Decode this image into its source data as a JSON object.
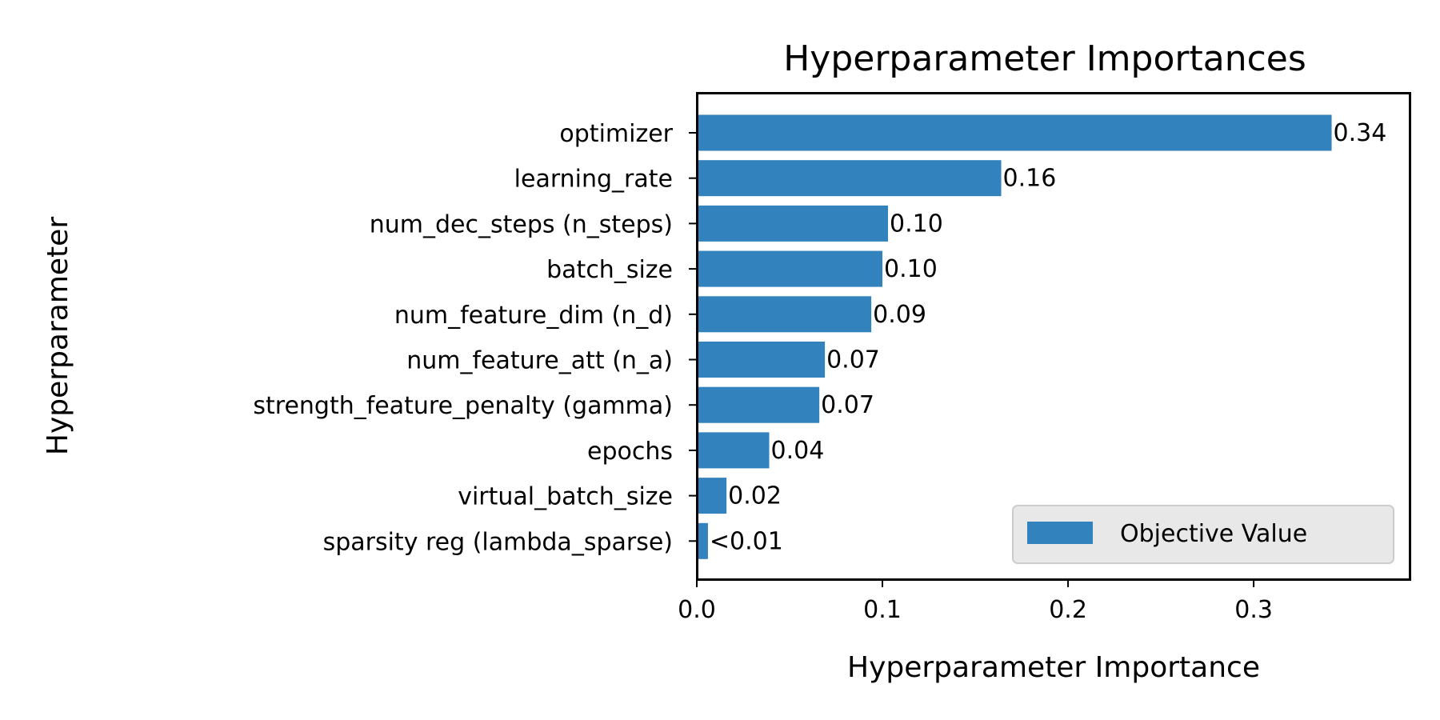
{
  "chart_data": {
    "type": "bar",
    "orientation": "horizontal",
    "title": "Hyperparameter Importances",
    "xlabel": "Hyperparameter Importance",
    "ylabel": "Hyperparameter",
    "categories": [
      "optimizer",
      "learning_rate",
      "num_dec_steps (n_steps)",
      "batch_size",
      "num_feature_dim (n_d)",
      "num_feature_att (n_a)",
      "strength_feature_penalty (gamma)",
      "epochs",
      "virtual_batch_size",
      "sparsity reg (lambda_sparse)"
    ],
    "series": [
      {
        "name": "Objective Value",
        "values": [
          0.342,
          0.164,
          0.103,
          0.1,
          0.094,
          0.069,
          0.066,
          0.039,
          0.016,
          0.006
        ],
        "labels": [
          "0.34",
          "0.16",
          "0.10",
          "0.10",
          "0.09",
          "0.07",
          "0.07",
          "0.04",
          "0.02",
          "<0.01"
        ],
        "color": "#3182bd"
      }
    ],
    "xlim": [
      0,
      0.384
    ],
    "xticks": [
      0.0,
      0.1,
      0.2,
      0.3
    ],
    "xtick_labels": [
      "0.0",
      "0.1",
      "0.2",
      "0.3"
    ],
    "grid": false,
    "legend": {
      "position": "lower-right",
      "entries": [
        "Objective Value"
      ]
    }
  }
}
